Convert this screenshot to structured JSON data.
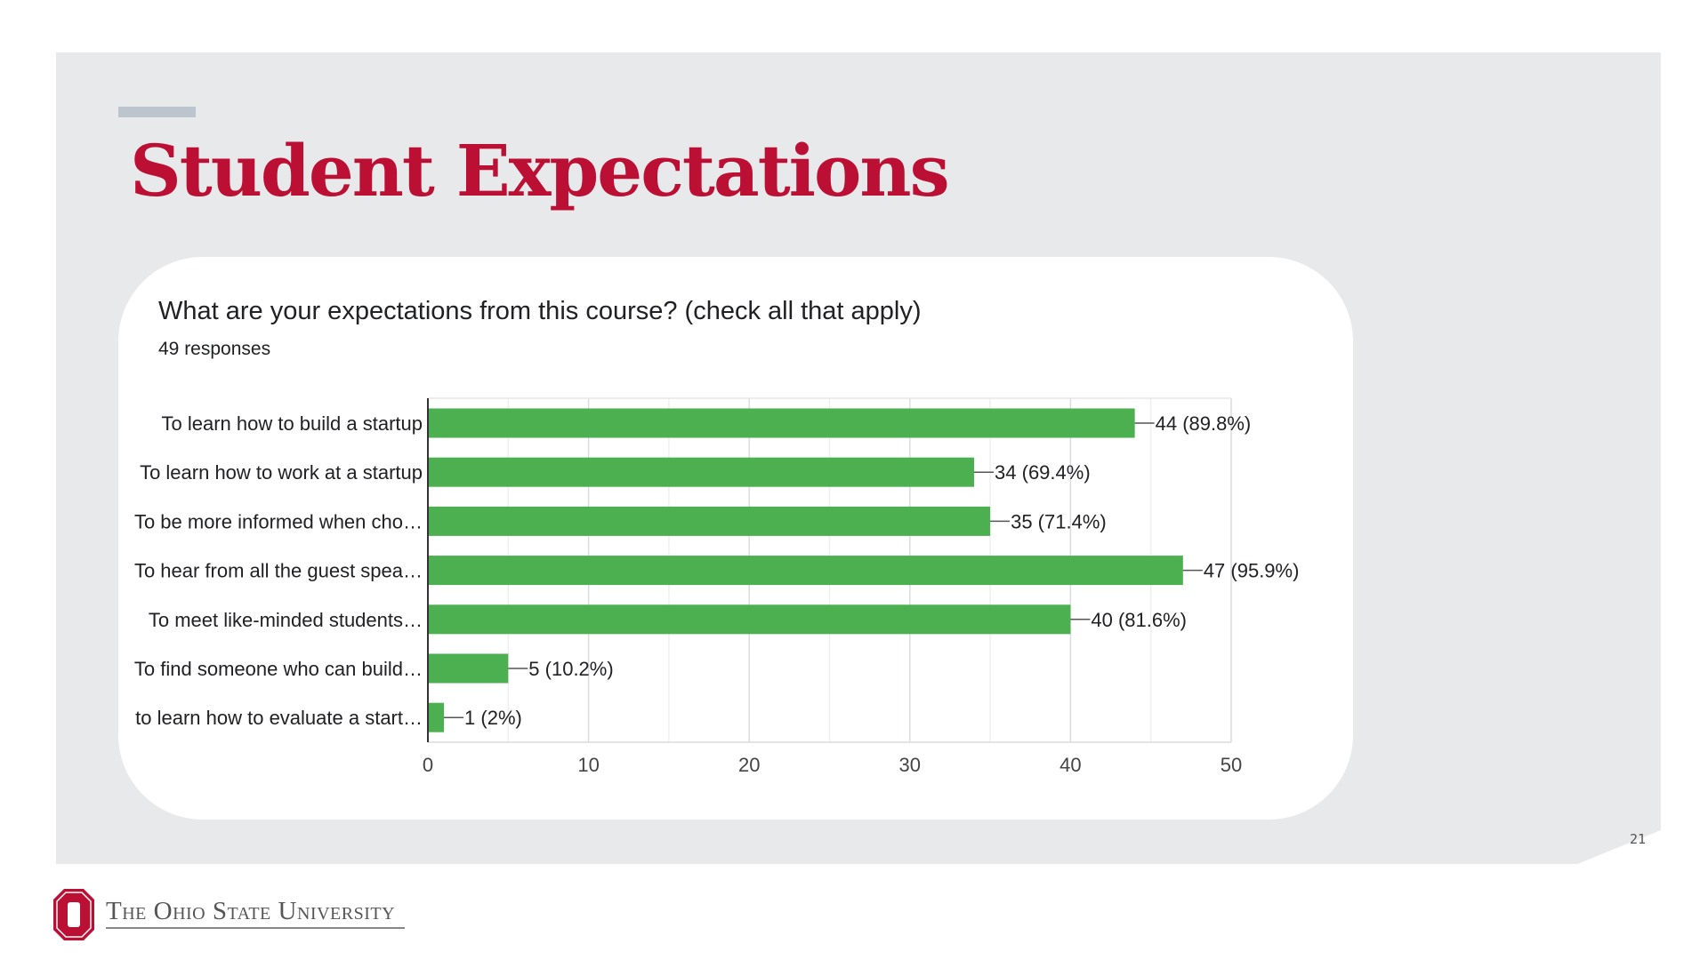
{
  "slide": {
    "title": "Student Expectations",
    "page_number": "21",
    "footer": {
      "university_name": "The Ohio State University"
    }
  },
  "colors": {
    "panel_bg": "#e8e9eb",
    "title_red": "#bb0f34",
    "accent_bar": "#bcc5ce",
    "bar_green": "#4caf50",
    "logo_red": "#bb0f34"
  },
  "chart_data": {
    "type": "bar",
    "orientation": "horizontal",
    "title": "What are your expectations from this course? (check all that apply)",
    "subtitle": "49 responses",
    "categories": [
      "To learn how to build a startup",
      "To learn how to work at a startup",
      "To be more informed when cho…",
      "To hear from all the guest spea…",
      "To meet like-minded students…",
      "To find someone who can build…",
      "to learn how to evaluate a start…"
    ],
    "values": [
      44,
      34,
      35,
      47,
      40,
      5,
      1
    ],
    "data_labels": [
      "44 (89.8%)",
      "34 (69.4%)",
      "35 (71.4%)",
      "47 (95.9%)",
      "40 (81.6%)",
      "5 (10.2%)",
      "1 (2%)"
    ],
    "xlim": [
      0,
      50
    ],
    "x_ticks": [
      0,
      10,
      20,
      30,
      40,
      50
    ],
    "grid": true,
    "legend": "none"
  }
}
